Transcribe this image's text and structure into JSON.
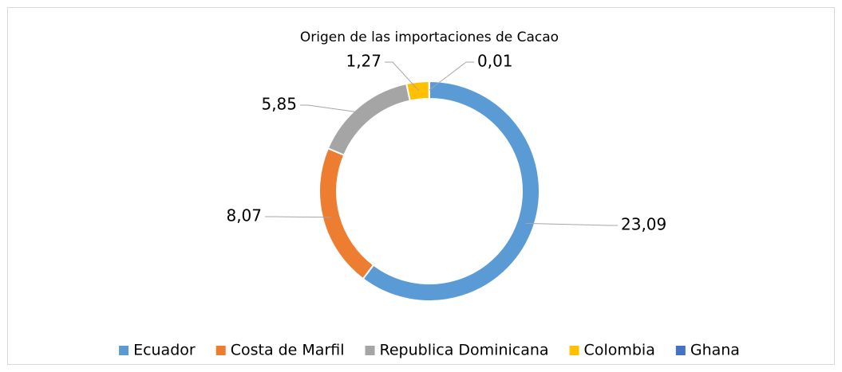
{
  "chart_data": {
    "type": "donut",
    "title": "Origen de las importaciones de Cacao",
    "categories": [
      "Ecuador",
      "Costa de Marfil",
      "Republica Dominicana",
      "Colombia",
      "Ghana"
    ],
    "values": [
      23.09,
      8.07,
      5.85,
      1.27,
      0.01
    ],
    "value_labels": [
      "23,09",
      "8,07",
      "5,85",
      "1,27",
      "0,01"
    ],
    "colors": [
      "#5b9bd5",
      "#ed7d31",
      "#a5a5a5",
      "#ffc000",
      "#4472c4"
    ],
    "legend": "bottom"
  }
}
